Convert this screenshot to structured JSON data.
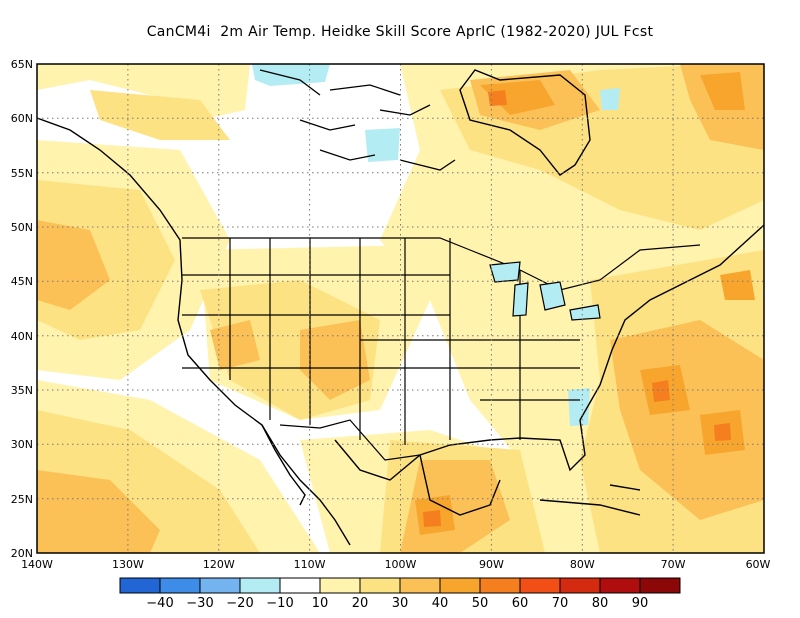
{
  "title": "CanCM4i  2m Air Temp. Heidke Skill Score AprIC (1982-2020) JUL Fcst",
  "lat_labels": [
    "65N",
    "60N",
    "55N",
    "50N",
    "45N",
    "40N",
    "35N",
    "30N",
    "25N",
    "20N"
  ],
  "lon_labels": [
    "140W",
    "130W",
    "120W",
    "110W",
    "100W",
    "90W",
    "80W",
    "70W",
    "60W"
  ],
  "legend": {
    "colors": [
      "#2166d4",
      "#3d8ce8",
      "#73b3f0",
      "#b4ecf4",
      "#ffffff",
      "#fff3ad",
      "#fde283",
      "#fbc157",
      "#f8a52d",
      "#f57f1e",
      "#f24f16",
      "#d42a10",
      "#b00e0e",
      "#8c0808"
    ],
    "labels": [
      "-40",
      "-30",
      "-20",
      "-10",
      "10",
      "20",
      "30",
      "40",
      "50",
      "60",
      "70",
      "80",
      "90"
    ]
  },
  "map": {
    "projection": "lat-lon",
    "extent": {
      "lon": [
        -140,
        -60
      ],
      "lat": [
        20,
        65
      ]
    },
    "variable": "Heidke Skill Score",
    "dominant_range": "10 to 40",
    "hotspots_50_to_70": [
      "Hudson Bay region",
      "western Atlantic east of US coast",
      "Gulf of Mexico",
      "Labrador Sea"
    ],
    "negative_areas": [
      "northern Canada Arctic islands",
      "southeast US coast"
    ]
  }
}
